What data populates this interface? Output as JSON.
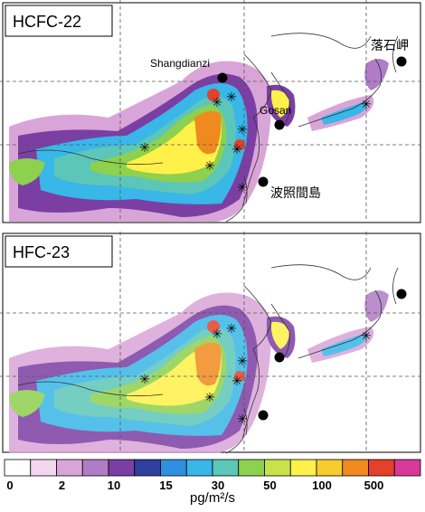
{
  "panels": [
    {
      "label": "HCFC-22",
      "stations": [
        "Shangdianzi",
        "Gosan",
        "波照間島",
        "落石岬"
      ]
    },
    {
      "label": "HFC-23"
    }
  ],
  "colorbar": {
    "colors": [
      "#ffffff",
      "#f3d6f0",
      "#d9a5d8",
      "#b07cc6",
      "#7b3fa4",
      "#2e3f9e",
      "#2f8fe0",
      "#38b7e8",
      "#5cc6b8",
      "#8ed14e",
      "#c8e34a",
      "#fff14a",
      "#f8cc2e",
      "#f08a1e",
      "#e4402a",
      "#d83a9a"
    ],
    "ticks": [
      "0",
      "2",
      "10",
      "15",
      "30",
      "50",
      "100",
      "500"
    ],
    "unit": "pg/m²/s"
  }
}
